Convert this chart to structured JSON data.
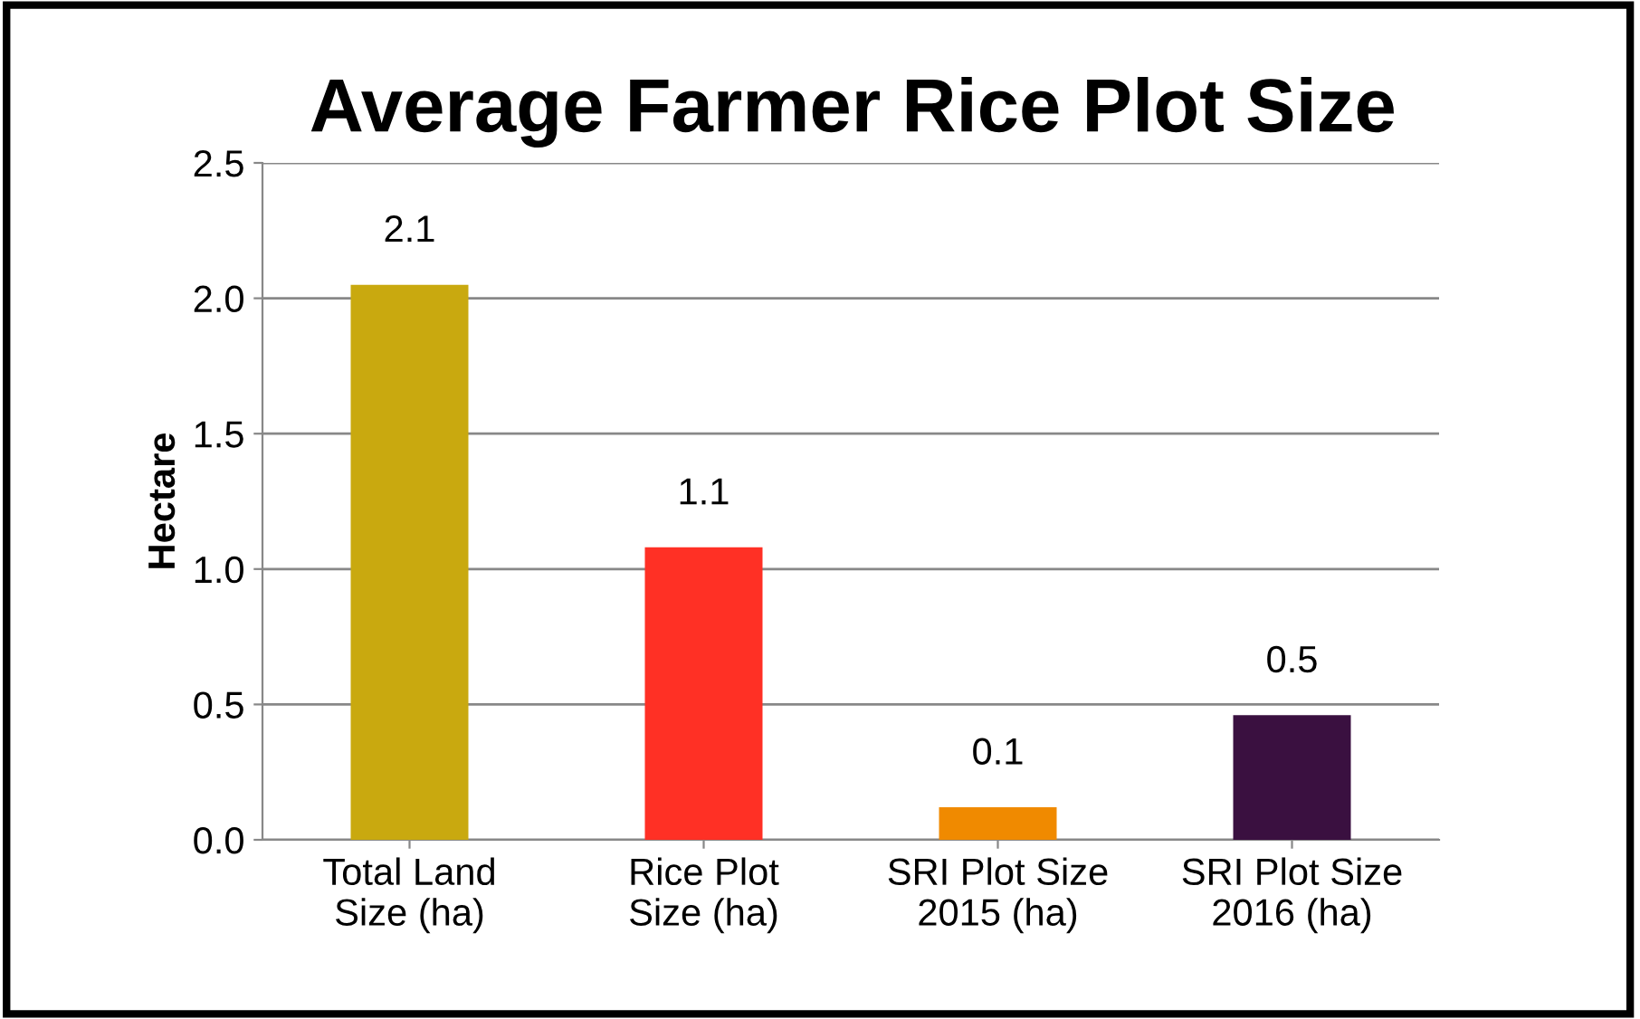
{
  "chart_data": {
    "type": "bar",
    "title": "Average Farmer Rice Plot Size",
    "ylabel": "Hectare",
    "categories": [
      "Total Land\nSize (ha)",
      "Rice Plot\nSize (ha)",
      "SRI Plot Size\n2015 (ha)",
      "SRI Plot Size\n2016 (ha)"
    ],
    "values": [
      2.05,
      1.08,
      0.12,
      0.46
    ],
    "colors": [
      "#c9a90f",
      "#ff3025",
      "#f08a00",
      "#3a1040"
    ],
    "value_labels": [
      "2.1",
      "1.1",
      "0.1",
      "0.5"
    ],
    "ylim": [
      0,
      2.5
    ],
    "yticks": [
      {
        "value": 0,
        "label": "0.0"
      },
      {
        "value": 0.5,
        "label": "0.5"
      },
      {
        "value": 1,
        "label": "1.0"
      },
      {
        "value": 1.5,
        "label": "1.5"
      },
      {
        "value": 2,
        "label": "2.0"
      },
      {
        "value": 2.5,
        "label": "2.5"
      }
    ],
    "grid": "y",
    "legend": false
  }
}
